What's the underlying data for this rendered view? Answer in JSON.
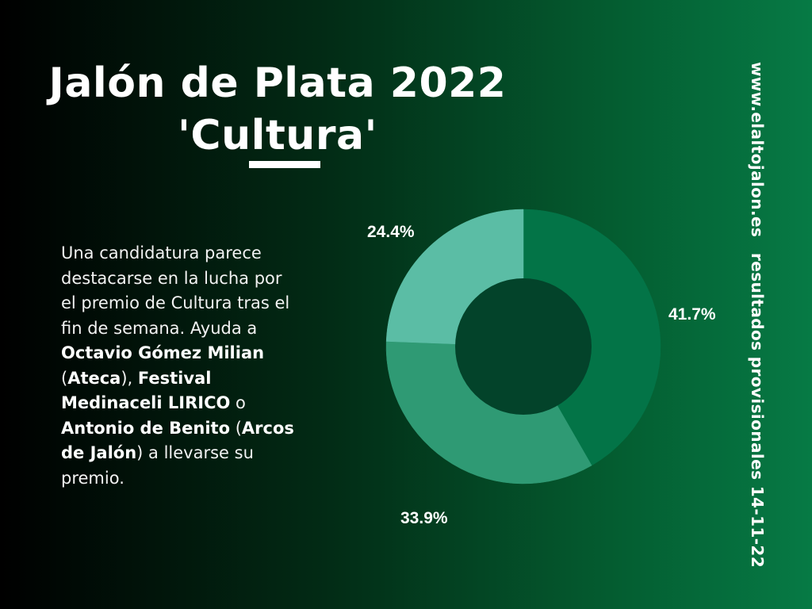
{
  "title": {
    "line1": "Jalón de Plata 2022",
    "line2": "'Cultura'"
  },
  "description": {
    "part1": "Una candidatura parece destacarse en la lucha por el premio de Cultura tras el fin de semana. Ayuda a ",
    "bold1": "Octavio Gómez Milian",
    "part2": " (",
    "bold2": "Ateca",
    "part3": "), ",
    "bold3": "Festival Medinaceli LIRICO",
    "part4": " o ",
    "bold4": "Antonio de Benito",
    "part5": " (",
    "bold5": "Arcos de Jalón",
    "part6": ") a llevarse su premio."
  },
  "side_text": {
    "url": "www.elaltojalon.es",
    "note": "resultados provisionales 14-11-22"
  },
  "chart_data": {
    "type": "pie",
    "donut": true,
    "slices": [
      {
        "label": "41.7%",
        "value": 41.7,
        "color": "#037447"
      },
      {
        "label": "33.9%",
        "value": 33.9,
        "color": "#2f9a74"
      },
      {
        "label": "24.4%",
        "value": 24.4,
        "color": "#5bbda5"
      }
    ],
    "hole_color": "#03432a",
    "start_angle": "top, clockwise"
  }
}
